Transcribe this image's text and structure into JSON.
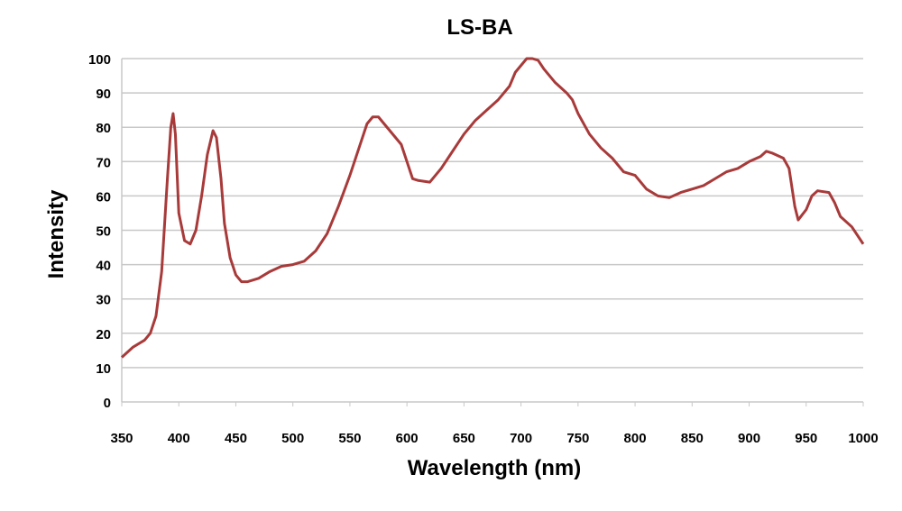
{
  "chart_data": {
    "type": "line",
    "title": "LS-BA",
    "x_label": "Wavelength (nm)",
    "y_label": "Intensity",
    "x": [
      350,
      360,
      370,
      375,
      380,
      385,
      390,
      393,
      395,
      397,
      400,
      405,
      410,
      415,
      420,
      425,
      430,
      433,
      437,
      440,
      445,
      450,
      455,
      460,
      470,
      480,
      490,
      500,
      510,
      520,
      530,
      540,
      550,
      560,
      565,
      570,
      575,
      580,
      590,
      595,
      600,
      605,
      610,
      620,
      625,
      630,
      640,
      650,
      660,
      670,
      680,
      690,
      695,
      700,
      705,
      710,
      715,
      720,
      730,
      740,
      745,
      750,
      760,
      770,
      780,
      790,
      800,
      810,
      820,
      830,
      840,
      850,
      860,
      870,
      880,
      890,
      900,
      910,
      915,
      920,
      930,
      935,
      940,
      943,
      950,
      955,
      960,
      970,
      975,
      980,
      990,
      1000
    ],
    "series": [
      {
        "name": "LS-BA",
        "color": "#a83a3a",
        "values": [
          13,
          16,
          18,
          20,
          25,
          38,
          65,
          80,
          84,
          78,
          55,
          47,
          46,
          50,
          60,
          72,
          79,
          77,
          65,
          52,
          42,
          37,
          35,
          35,
          36,
          38,
          39.5,
          40,
          41,
          44,
          49,
          57,
          66,
          76,
          81,
          83,
          83,
          81,
          77,
          75,
          70,
          65,
          64.5,
          64,
          66,
          68,
          73,
          78,
          82,
          85,
          88,
          92,
          96,
          98,
          100,
          100,
          99.5,
          97,
          93,
          90,
          88,
          84,
          78,
          74,
          71,
          67,
          66,
          62,
          60,
          59.5,
          61,
          62,
          63,
          65,
          67,
          68,
          70,
          71.5,
          73,
          72.5,
          71,
          68,
          57,
          53,
          56,
          60,
          61.5,
          61,
          58,
          54,
          51,
          46
        ]
      }
    ],
    "xlim": [
      350,
      1000
    ],
    "xticks": [
      350,
      400,
      450,
      500,
      550,
      600,
      650,
      700,
      750,
      800,
      850,
      900,
      950,
      1000
    ],
    "ylim": [
      0,
      100
    ],
    "yticks": [
      0,
      10,
      20,
      30,
      40,
      50,
      60,
      70,
      80,
      90,
      100
    ],
    "grid": true
  }
}
